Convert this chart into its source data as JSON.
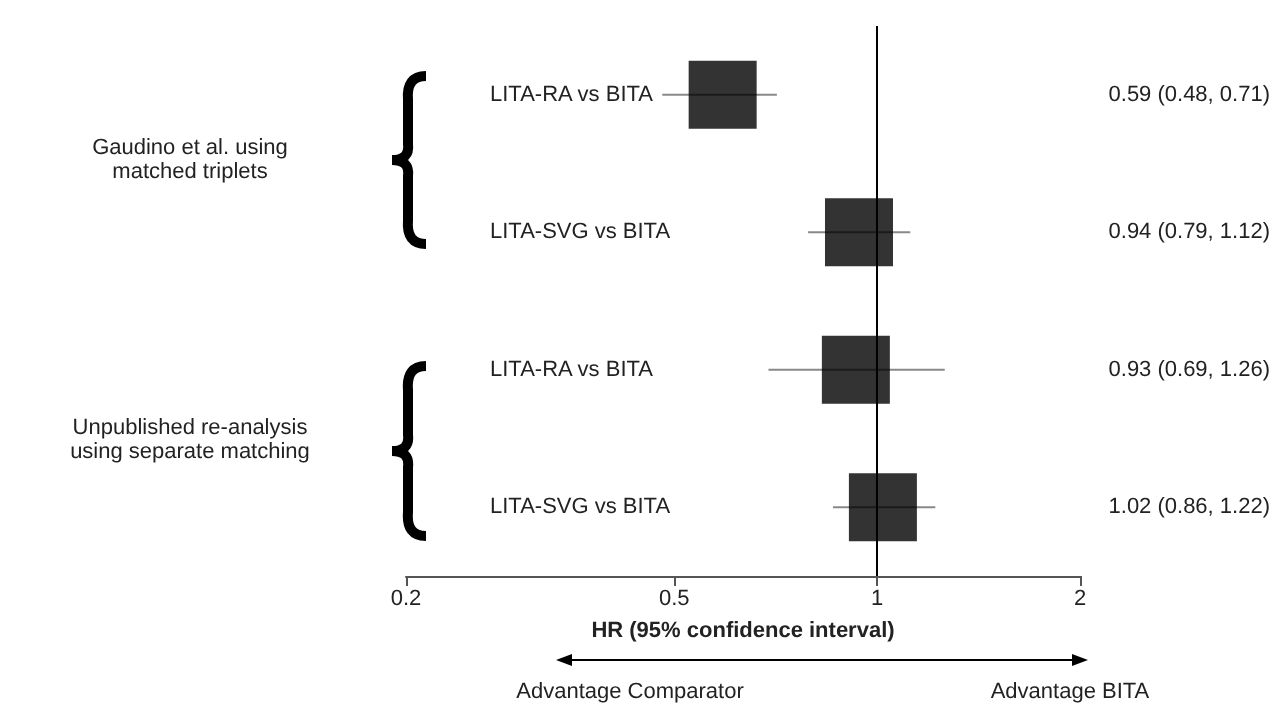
{
  "chart_data": {
    "type": "scatter",
    "orientation": "horizontal",
    "categories": [
      "LITA-RA vs BITA",
      "LITA-SVG vs BITA",
      "LITA-RA vs BITA",
      "LITA-SVG vs BITA"
    ],
    "values": [
      0.59,
      0.94,
      0.93,
      1.02
    ],
    "errors": [
      [
        0.48,
        0.71
      ],
      [
        0.79,
        1.12
      ],
      [
        0.69,
        1.26
      ],
      [
        0.86,
        1.22
      ]
    ],
    "value_labels": [
      "0.59 (0.48, 0.71)",
      "0.94 (0.79, 1.12)",
      "0.93 (0.69, 1.26)",
      "1.02 (0.86, 1.22)"
    ],
    "color": "#000000",
    "marker": "square",
    "log": "x",
    "xlim": [
      0.2,
      2
    ],
    "xticks": [
      0.2,
      0.5,
      1,
      2
    ],
    "xlabel": "HR (95% confidence interval)",
    "ref_lines": [
      {
        "axis": "x",
        "value": 1,
        "color": "#000000"
      }
    ],
    "annotations": [
      "Gaudino et al. using matched triplets",
      "Unpublished re-analysis using separate matching",
      "Advantage Comparator",
      "Advantage BITA"
    ],
    "grid": false
  }
}
